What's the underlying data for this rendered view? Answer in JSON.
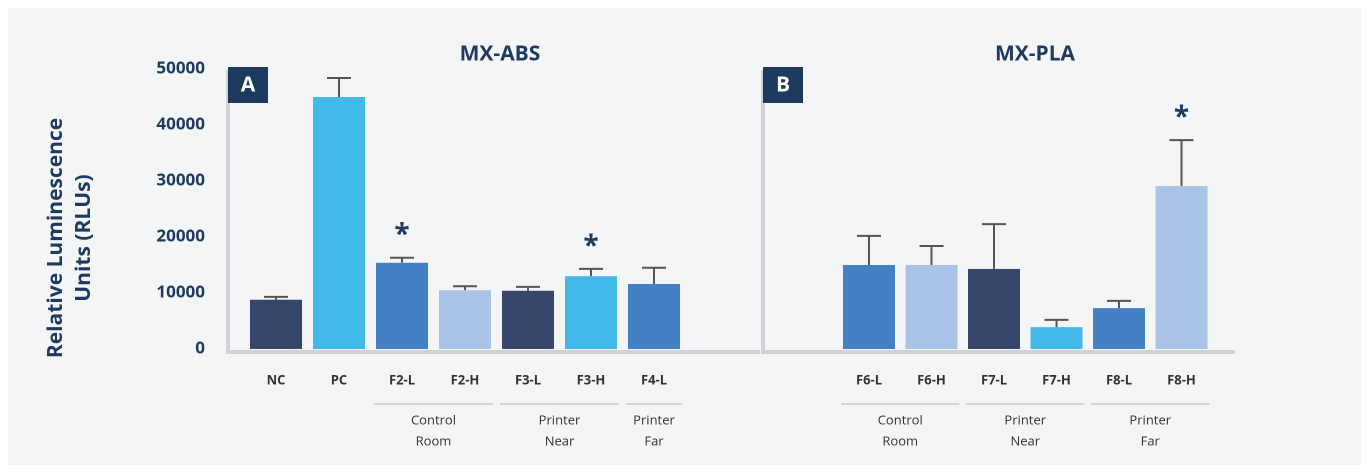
{
  "chart_data": [
    {
      "type": "bar",
      "title": "MX-ABS",
      "panel_label": "A",
      "ylabel": [
        "Relative Luminescence",
        "Units (RLUs)"
      ],
      "categories": [
        "NC",
        "PC",
        "F2-L",
        "F2-H",
        "F3-L",
        "F3-H",
        "F4-L"
      ],
      "values": [
        8800,
        45000,
        15400,
        10500,
        10400,
        13000,
        11600
      ],
      "errors": [
        500,
        3400,
        900,
        700,
        700,
        1300,
        2900
      ],
      "colors": [
        "#36476b",
        "#42b9e8",
        "#4580c4",
        "#a9c4e6",
        "#36476b",
        "#42b9e8",
        "#4580c4"
      ],
      "significance": [
        null,
        null,
        "*",
        null,
        null,
        "*",
        null
      ],
      "groups": [
        {
          "label": [
            "Control",
            "Room"
          ],
          "start": 2,
          "end": 3
        },
        {
          "label": [
            "Printer",
            "Near"
          ],
          "start": 4,
          "end": 5
        },
        {
          "label": [
            "Printer",
            "Far"
          ],
          "start": 6,
          "end": 6
        }
      ],
      "ylim": [
        0,
        50000
      ],
      "yticks": [
        0,
        10000,
        20000,
        30000,
        40000,
        50000
      ]
    },
    {
      "type": "bar",
      "title": "MX-PLA",
      "panel_label": "B",
      "categories": [
        "F6-L",
        "F6-H",
        "F7-L",
        "F7-H",
        "F8-L",
        "F8-H"
      ],
      "values": [
        15000,
        15000,
        14300,
        3900,
        7300,
        29100
      ],
      "errors": [
        5200,
        3400,
        8000,
        1300,
        1300,
        8200
      ],
      "colors": [
        "#4580c4",
        "#a9c4e6",
        "#36476b",
        "#42b9e8",
        "#4580c4",
        "#a9c4e6"
      ],
      "significance": [
        null,
        null,
        null,
        null,
        null,
        "*"
      ],
      "groups": [
        {
          "label": [
            "Control",
            "Room"
          ],
          "start": 0,
          "end": 1
        },
        {
          "label": [
            "Printer",
            "Near"
          ],
          "start": 2,
          "end": 3
        },
        {
          "label": [
            "Printer",
            "Far"
          ],
          "start": 4,
          "end": 5
        }
      ],
      "ylim": [
        0,
        50000
      ]
    }
  ]
}
